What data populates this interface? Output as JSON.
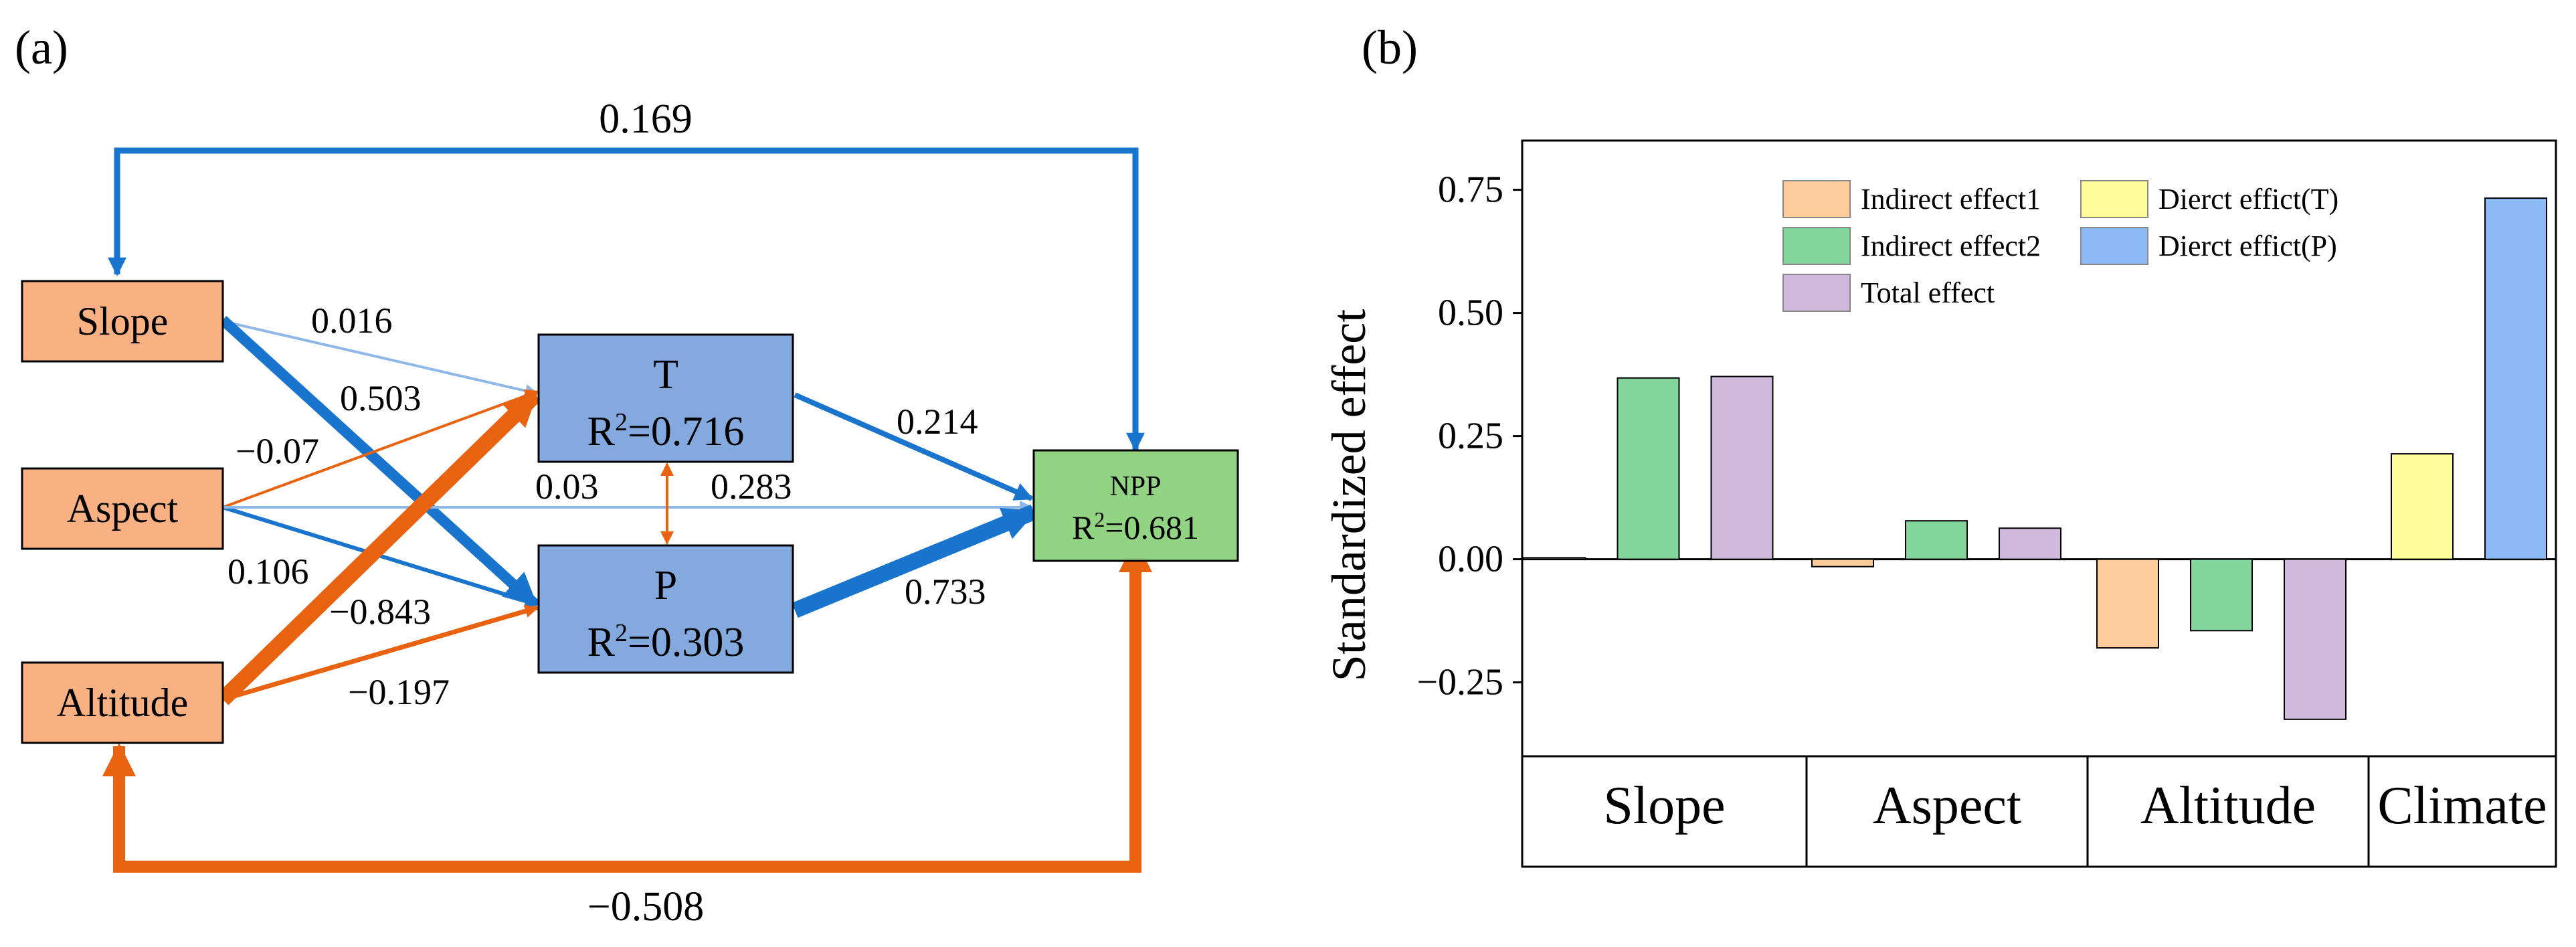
{
  "panel_a": {
    "label": "(a)",
    "nodes": {
      "slope": "Slope",
      "aspect": "Aspect",
      "altitude": "Altitude",
      "t_name": "T",
      "t_r2_prefix": "R",
      "t_r2_sup": "2",
      "t_r2_value": "=0.716",
      "p_name": "P",
      "p_r2_prefix": "R",
      "p_r2_sup": "2",
      "p_r2_value": "=0.303",
      "npp_name": "NPP",
      "npp_r2_prefix": "R",
      "npp_r2_sup": "2",
      "npp_r2_value": "=0.681"
    },
    "paths": {
      "slope_t": "0.016",
      "slope_p": "0.503",
      "aspect_t": "−0.07",
      "aspect_p": "0.106",
      "aspect_npp": "0.283",
      "altitude_t": "−0.843",
      "altitude_p": "−0.197",
      "t_p": "0.03",
      "t_npp": "0.214",
      "p_npp": "0.733",
      "npp_slope": "0.169",
      "npp_altitude": "−0.508"
    },
    "colors": {
      "positive": "#1874cd",
      "negative": "#e8620f",
      "topographic_box": "#f9b183",
      "climate_box": "#84a9df",
      "npp_box": "#93d384"
    }
  },
  "panel_b": {
    "label": "(b)"
  },
  "chart_data": {
    "type": "bar",
    "title": "",
    "xlabel": "",
    "ylabel": "Standardized effect",
    "ylim": [
      -0.4,
      0.85
    ],
    "yticks": [
      -0.25,
      0.0,
      0.25,
      0.5,
      0.75
    ],
    "ytick_labels": [
      "−0.25",
      "0.00",
      "0.25",
      "0.50",
      "0.75"
    ],
    "categories": [
      "Slope",
      "Aspect",
      "Altitude",
      "Climate"
    ],
    "legend": [
      {
        "name": "Indirect effect1",
        "color": "#fdcc9a"
      },
      {
        "name": "Indirect effect2",
        "color": "#82d69c"
      },
      {
        "name": "Total effect",
        "color": "#d0b8dd"
      },
      {
        "name": "Dierct effict(T)",
        "color": "#fdfb9a"
      },
      {
        "name": "Dierct effict(P)",
        "color": "#8bbaf6"
      }
    ],
    "bars": [
      {
        "category": "Slope",
        "series": "Indirect effect1",
        "value": 0.003,
        "color": "#fdcc9a"
      },
      {
        "category": "Slope",
        "series": "Indirect effect2",
        "value": 0.368,
        "color": "#82d69c"
      },
      {
        "category": "Slope",
        "series": "Total effect",
        "value": 0.371,
        "color": "#d0b8dd"
      },
      {
        "category": "Aspect",
        "series": "Indirect effect1",
        "value": -0.015,
        "color": "#fdcc9a"
      },
      {
        "category": "Aspect",
        "series": "Indirect effect2",
        "value": 0.078,
        "color": "#82d69c"
      },
      {
        "category": "Aspect",
        "series": "Total effect",
        "value": 0.063,
        "color": "#d0b8dd"
      },
      {
        "category": "Altitude",
        "series": "Indirect effect1",
        "value": -0.18,
        "color": "#fdcc9a"
      },
      {
        "category": "Altitude",
        "series": "Indirect effect2",
        "value": -0.145,
        "color": "#82d69c"
      },
      {
        "category": "Altitude",
        "series": "Total effect",
        "value": -0.325,
        "color": "#d0b8dd"
      },
      {
        "category": "Climate",
        "series": "Dierct effict(T)",
        "value": 0.214,
        "color": "#fdfb9a"
      },
      {
        "category": "Climate",
        "series": "Dierct effict(P)",
        "value": 0.733,
        "color": "#8bbaf6"
      }
    ]
  }
}
